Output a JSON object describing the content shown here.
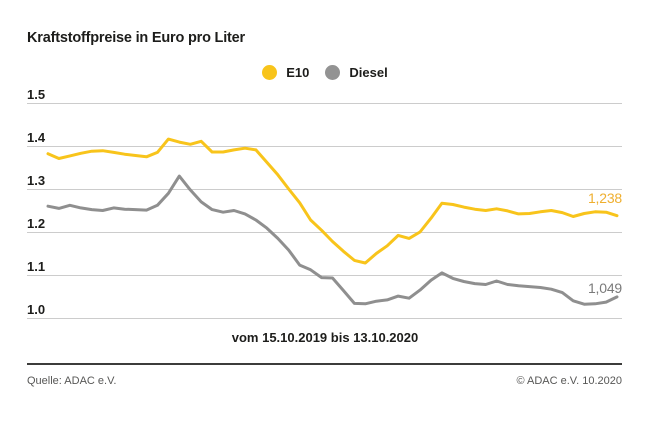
{
  "title": "Kraftstoffpreise in Euro pro Liter",
  "legend": [
    {
      "label": "E10",
      "color": "#f8c41b"
    },
    {
      "label": "Diesel",
      "color": "#939393"
    }
  ],
  "y_axis_labels": [
    "1.5",
    "1.4",
    "1.3",
    "1.2",
    "1.1",
    "1.0"
  ],
  "end_labels": {
    "e10": "1,238",
    "diesel": "1,049"
  },
  "x_caption": "vom 15.10.2019 bis 13.10.2020",
  "footer": {
    "source": "Quelle: ADAC e.V.",
    "copyright": "© ADAC e.V. 10.2020"
  },
  "colors": {
    "e10_line": "#f8c41b",
    "e10_label": "#efaf2f",
    "diesel_line": "#8f8f8f",
    "diesel_label": "#7a7a7a",
    "gridline": "#cccccc",
    "divider": "#3c3c3b",
    "text": "#1d1d1b",
    "footnote_text": "#575756",
    "background": "#ffffff"
  },
  "chart_data": {
    "type": "line",
    "title": "Kraftstoffpreise in Euro pro Liter",
    "xlabel": "vom 15.10.2019 bis 13.10.2020",
    "ylabel": "Euro pro Liter",
    "period": {
      "from": "15.10.2019",
      "to": "13.10.2020",
      "interval": "weekly"
    },
    "ylim": [
      1.0,
      1.5
    ],
    "yticks": [
      1.5,
      1.4,
      1.3,
      1.2,
      1.1,
      1.0
    ],
    "grid": true,
    "legend_position": "top-center",
    "series": [
      {
        "name": "E10",
        "color": "#f8c41b",
        "end_label": "1,238",
        "end_value": 1.238,
        "values": [
          1.382,
          1.371,
          1.377,
          1.383,
          1.388,
          1.389,
          1.385,
          1.381,
          1.378,
          1.375,
          1.385,
          1.416,
          1.409,
          1.404,
          1.411,
          1.386,
          1.386,
          1.391,
          1.395,
          1.391,
          1.362,
          1.333,
          1.3,
          1.268,
          1.228,
          1.204,
          1.178,
          1.155,
          1.134,
          1.128,
          1.15,
          1.168,
          1.192,
          1.185,
          1.2,
          1.232,
          1.267,
          1.264,
          1.258,
          1.253,
          1.25,
          1.254,
          1.249,
          1.242,
          1.243,
          1.247,
          1.25,
          1.245,
          1.236,
          1.243,
          1.247,
          1.246,
          1.238
        ]
      },
      {
        "name": "Diesel",
        "color": "#8f8f8f",
        "end_label": "1,049",
        "end_value": 1.049,
        "values": [
          1.26,
          1.255,
          1.262,
          1.256,
          1.252,
          1.25,
          1.256,
          1.253,
          1.252,
          1.251,
          1.262,
          1.29,
          1.33,
          1.298,
          1.27,
          1.252,
          1.246,
          1.25,
          1.242,
          1.228,
          1.209,
          1.185,
          1.158,
          1.123,
          1.112,
          1.094,
          1.093,
          1.064,
          1.034,
          1.033,
          1.039,
          1.042,
          1.051,
          1.046,
          1.065,
          1.088,
          1.105,
          1.092,
          1.085,
          1.08,
          1.078,
          1.086,
          1.078,
          1.075,
          1.073,
          1.071,
          1.067,
          1.059,
          1.04,
          1.032,
          1.033,
          1.037,
          1.049
        ]
      }
    ]
  }
}
